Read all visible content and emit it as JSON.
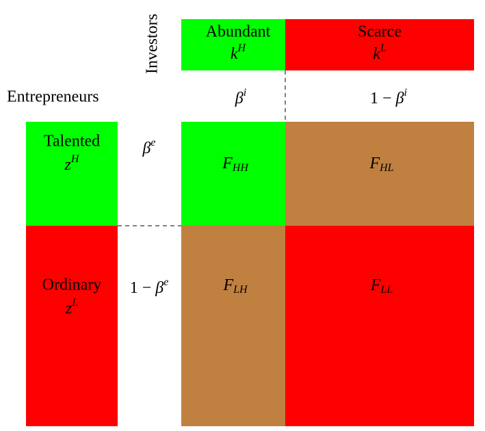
{
  "investors": {
    "title": "Investors",
    "columns": [
      {
        "label": "Abundant",
        "symbol": {
          "base": "k",
          "sup": "H"
        },
        "share": {
          "base": "β",
          "sup": "i"
        }
      },
      {
        "label": "Scarce",
        "symbol": {
          "base": "k",
          "sup": "L"
        },
        "share": {
          "prefix": "1 − ",
          "base": "β",
          "sup": "i"
        }
      }
    ]
  },
  "entrepreneurs": {
    "title": "Entrepreneurs",
    "rows": [
      {
        "label": "Talented",
        "symbol": {
          "base": "z",
          "sup": "H"
        },
        "share": {
          "base": "β",
          "sup": "e"
        }
      },
      {
        "label": "Ordinary",
        "symbol": {
          "base": "z",
          "sup": "L"
        },
        "share": {
          "prefix": "1 − ",
          "base": "β",
          "sup": "e"
        }
      }
    ]
  },
  "cells": [
    [
      {
        "base": "F",
        "sub": "HH"
      },
      {
        "base": "F",
        "sub": "HL"
      }
    ],
    [
      {
        "base": "F",
        "sub": "LH"
      },
      {
        "base": "F",
        "sub": "LL"
      }
    ]
  ]
}
